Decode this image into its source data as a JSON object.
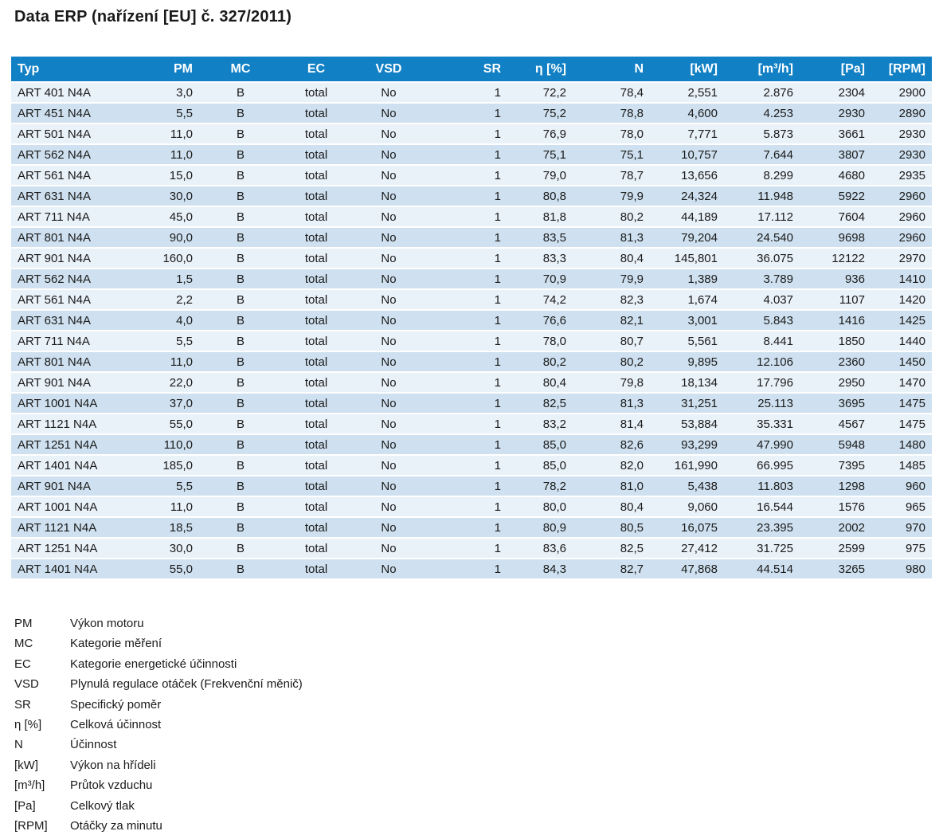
{
  "doc": {
    "title": "Data ERP (nařízení [EU] č. 327/2011)"
  },
  "table": {
    "columns": [
      "Typ",
      "PM",
      "MC",
      "EC",
      "VSD",
      "SR",
      "η [%]",
      "N",
      "[kW]",
      "[m³/h]",
      "[Pa]",
      "[RPM]"
    ],
    "rows": [
      [
        "ART 401 N4A",
        "3,0",
        "B",
        "total",
        "No",
        "1",
        "72,2",
        "78,4",
        "2,551",
        "2.876",
        "2304",
        "2900"
      ],
      [
        "ART 451 N4A",
        "5,5",
        "B",
        "total",
        "No",
        "1",
        "75,2",
        "78,8",
        "4,600",
        "4.253",
        "2930",
        "2890"
      ],
      [
        "ART 501 N4A",
        "11,0",
        "B",
        "total",
        "No",
        "1",
        "76,9",
        "78,0",
        "7,771",
        "5.873",
        "3661",
        "2930"
      ],
      [
        "ART 562 N4A",
        "11,0",
        "B",
        "total",
        "No",
        "1",
        "75,1",
        "75,1",
        "10,757",
        "7.644",
        "3807",
        "2930"
      ],
      [
        "ART 561 N4A",
        "15,0",
        "B",
        "total",
        "No",
        "1",
        "79,0",
        "78,7",
        "13,656",
        "8.299",
        "4680",
        "2935"
      ],
      [
        "ART 631 N4A",
        "30,0",
        "B",
        "total",
        "No",
        "1",
        "80,8",
        "79,9",
        "24,324",
        "11.948",
        "5922",
        "2960"
      ],
      [
        "ART 711 N4A",
        "45,0",
        "B",
        "total",
        "No",
        "1",
        "81,8",
        "80,2",
        "44,189",
        "17.112",
        "7604",
        "2960"
      ],
      [
        "ART 801 N4A",
        "90,0",
        "B",
        "total",
        "No",
        "1",
        "83,5",
        "81,3",
        "79,204",
        "24.540",
        "9698",
        "2960"
      ],
      [
        "ART 901 N4A",
        "160,0",
        "B",
        "total",
        "No",
        "1",
        "83,3",
        "80,4",
        "145,801",
        "36.075",
        "12122",
        "2970"
      ],
      [
        "ART 562 N4A",
        "1,5",
        "B",
        "total",
        "No",
        "1",
        "70,9",
        "79,9",
        "1,389",
        "3.789",
        "936",
        "1410"
      ],
      [
        "ART 561 N4A",
        "2,2",
        "B",
        "total",
        "No",
        "1",
        "74,2",
        "82,3",
        "1,674",
        "4.037",
        "1107",
        "1420"
      ],
      [
        "ART 631 N4A",
        "4,0",
        "B",
        "total",
        "No",
        "1",
        "76,6",
        "82,1",
        "3,001",
        "5.843",
        "1416",
        "1425"
      ],
      [
        "ART 711 N4A",
        "5,5",
        "B",
        "total",
        "No",
        "1",
        "78,0",
        "80,7",
        "5,561",
        "8.441",
        "1850",
        "1440"
      ],
      [
        "ART 801 N4A",
        "11,0",
        "B",
        "total",
        "No",
        "1",
        "80,2",
        "80,2",
        "9,895",
        "12.106",
        "2360",
        "1450"
      ],
      [
        "ART 901 N4A",
        "22,0",
        "B",
        "total",
        "No",
        "1",
        "80,4",
        "79,8",
        "18,134",
        "17.796",
        "2950",
        "1470"
      ],
      [
        "ART 1001 N4A",
        "37,0",
        "B",
        "total",
        "No",
        "1",
        "82,5",
        "81,3",
        "31,251",
        "25.113",
        "3695",
        "1475"
      ],
      [
        "ART 1121 N4A",
        "55,0",
        "B",
        "total",
        "No",
        "1",
        "83,2",
        "81,4",
        "53,884",
        "35.331",
        "4567",
        "1475"
      ],
      [
        "ART 1251 N4A",
        "110,0",
        "B",
        "total",
        "No",
        "1",
        "85,0",
        "82,6",
        "93,299",
        "47.990",
        "5948",
        "1480"
      ],
      [
        "ART 1401 N4A",
        "185,0",
        "B",
        "total",
        "No",
        "1",
        "85,0",
        "82,0",
        "161,990",
        "66.995",
        "7395",
        "1485"
      ],
      [
        "ART 901 N4A",
        "5,5",
        "B",
        "total",
        "No",
        "1",
        "78,2",
        "81,0",
        "5,438",
        "11.803",
        "1298",
        "960"
      ],
      [
        "ART 1001 N4A",
        "11,0",
        "B",
        "total",
        "No",
        "1",
        "80,0",
        "80,4",
        "9,060",
        "16.544",
        "1576",
        "965"
      ],
      [
        "ART 1121 N4A",
        "18,5",
        "B",
        "total",
        "No",
        "1",
        "80,9",
        "80,5",
        "16,075",
        "23.395",
        "2002",
        "970"
      ],
      [
        "ART 1251 N4A",
        "30,0",
        "B",
        "total",
        "No",
        "1",
        "83,6",
        "82,5",
        "27,412",
        "31.725",
        "2599",
        "975"
      ],
      [
        "ART 1401 N4A",
        "55,0",
        "B",
        "total",
        "No",
        "1",
        "84,3",
        "82,7",
        "47,868",
        "44.514",
        "3265",
        "980"
      ]
    ]
  },
  "legend": {
    "items": [
      {
        "term": "PM",
        "description": "Výkon motoru"
      },
      {
        "term": "MC",
        "description": "Kategorie měření"
      },
      {
        "term": "EC",
        "description": "Kategorie energetické účinnosti"
      },
      {
        "term": "VSD",
        "description": "Plynulá regulace otáček (Frekvenční měnič)"
      },
      {
        "term": "SR",
        "description": "Specifický poměr"
      },
      {
        "term": "η [%]",
        "description": "Celková účinnost"
      },
      {
        "term": "N",
        "description": "Účinnost"
      },
      {
        "term": "[kW]",
        "description": "Výkon na hřídeli"
      },
      {
        "term": "[m³/h]",
        "description": "Průtok vzduchu"
      },
      {
        "term": "[Pa]",
        "description": "Celkový tlak"
      },
      {
        "term": "[RPM]",
        "description": "Otáčky za minutu"
      }
    ]
  },
  "colors": {
    "header_bg": "#1180c4",
    "header_text": "#ffffff",
    "row_light": "#e9f1f9",
    "row_dark": "#cfe1f0",
    "body_text": "#1a1a1a"
  }
}
